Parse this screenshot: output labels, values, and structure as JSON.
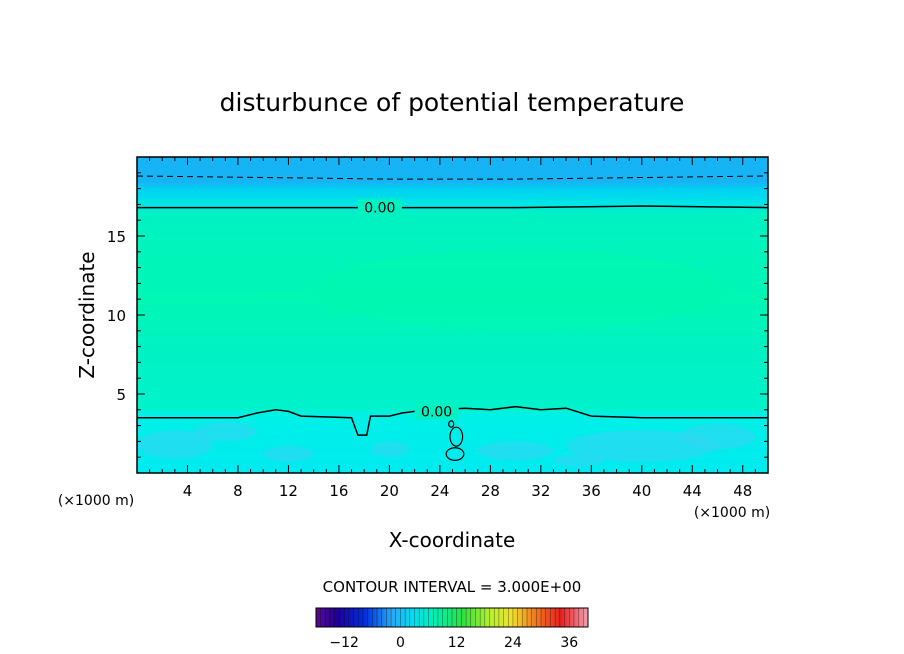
{
  "chart_data": {
    "type": "heatmap",
    "title": "disturbunce of potential temperature",
    "xlabel": "X-coordinate",
    "ylabel": "Z-coordinate",
    "x_unit_label": "(×1000 m)",
    "xlim": [
      0,
      50
    ],
    "ylim": [
      0,
      20
    ],
    "x_ticks": [
      4,
      8,
      12,
      16,
      20,
      24,
      28,
      32,
      36,
      40,
      44,
      48
    ],
    "y_ticks": [
      5,
      10,
      15
    ],
    "contour_interval_text": "CONTOUR INTERVAL = 3.000E+00",
    "contour_labels": [
      {
        "text": "0.00",
        "x": 17.5,
        "z": 16.8
      },
      {
        "text": "0.00",
        "x": 22.0,
        "z": 3.9
      }
    ],
    "contours": [
      {
        "level": 0,
        "style": "solid",
        "points": [
          [
            0,
            16.8
          ],
          [
            10,
            16.8
          ],
          [
            20,
            16.8
          ],
          [
            30,
            16.8
          ],
          [
            40,
            16.9
          ],
          [
            50,
            16.8
          ]
        ]
      },
      {
        "level": 0,
        "style": "solid",
        "points": [
          [
            0,
            3.5
          ],
          [
            8,
            3.5
          ],
          [
            9.5,
            3.8
          ],
          [
            11,
            4.0
          ],
          [
            12,
            3.9
          ],
          [
            13,
            3.6
          ],
          [
            17,
            3.5
          ],
          [
            17.5,
            2.4
          ],
          [
            18.2,
            2.4
          ],
          [
            18.5,
            3.6
          ],
          [
            20,
            3.6
          ],
          [
            21,
            3.8
          ],
          [
            22,
            3.9
          ],
          [
            24,
            4.0
          ],
          [
            26,
            4.1
          ],
          [
            28,
            4.0
          ],
          [
            30,
            4.2
          ],
          [
            32,
            4.0
          ],
          [
            34,
            4.1
          ],
          [
            36,
            3.6
          ],
          [
            40,
            3.5
          ],
          [
            50,
            3.5
          ]
        ]
      },
      {
        "level": -3,
        "style": "dashed",
        "points": [
          [
            0,
            18.8
          ],
          [
            10,
            18.7
          ],
          [
            20,
            18.6
          ],
          [
            30,
            18.6
          ],
          [
            40,
            18.7
          ],
          [
            50,
            18.8
          ]
        ]
      }
    ],
    "colorbar": {
      "ticks": [
        -12,
        0,
        12,
        24,
        36
      ],
      "min": -18,
      "max": 40
    },
    "colors": {
      "top_band": "#17b4f5",
      "upper_band": "#00d0f2",
      "interior": "#00f2c2",
      "interior_deep": "#00f7b4",
      "lower_band": "#00f0e6",
      "surface_cool": "#33d6f4"
    }
  }
}
